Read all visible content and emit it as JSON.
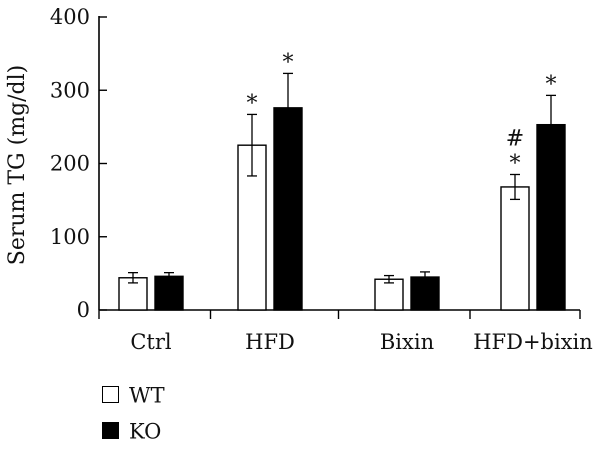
{
  "chart_data": {
    "type": "bar",
    "ylabel": "Serum TG (mg/dl)",
    "xlabel": "",
    "title": "",
    "ylim": [
      0,
      400
    ],
    "yticks": [
      0,
      100,
      200,
      300,
      400
    ],
    "categories": [
      "Ctrl",
      "HFD",
      "Bixin",
      "HFD+bixin"
    ],
    "series": [
      {
        "name": "WT",
        "color": "#ffffff",
        "values": [
          44,
          225,
          42,
          168
        ],
        "errors": [
          7,
          42,
          5,
          17
        ]
      },
      {
        "name": "KO",
        "color": "#000000",
        "values": [
          46,
          276,
          45,
          253
        ],
        "errors": [
          5,
          47,
          7,
          40
        ]
      }
    ],
    "annotations": [
      {
        "category": "HFD",
        "series": "WT",
        "text": "*"
      },
      {
        "category": "HFD",
        "series": "KO",
        "text": "*"
      },
      {
        "category": "HFD+bixin",
        "series": "WT",
        "text": "*"
      },
      {
        "category": "HFD+bixin",
        "series": "WT",
        "text": "#"
      },
      {
        "category": "HFD+bixin",
        "series": "KO",
        "text": "*"
      }
    ],
    "legend_position": "bottom-left",
    "grid": false
  }
}
